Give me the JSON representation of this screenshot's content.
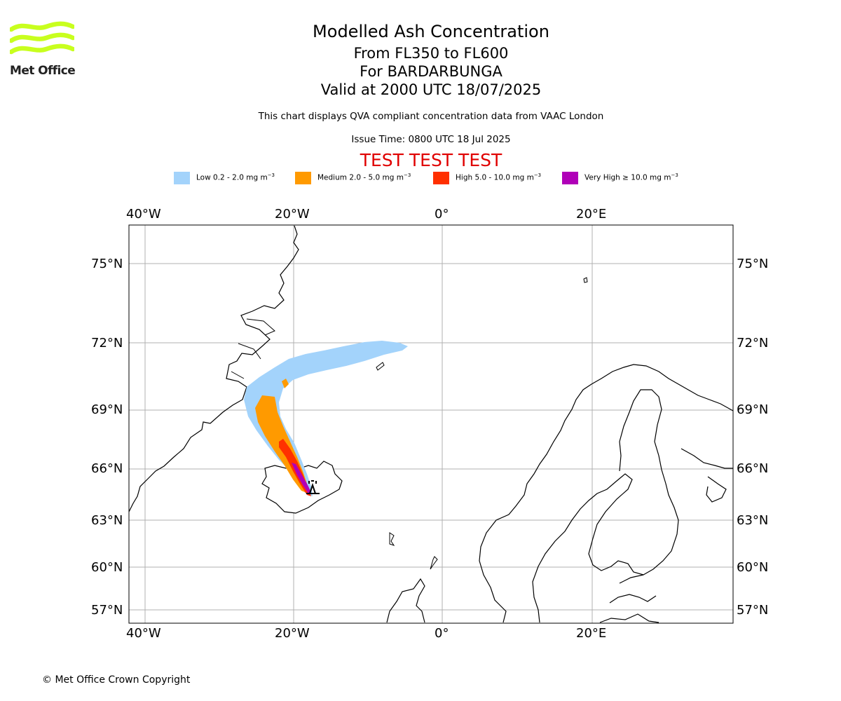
{
  "brand": {
    "name": "Met Office",
    "logo_color": "#c8ff1e"
  },
  "header": {
    "title": "Modelled Ash Concentration",
    "levels": "From FL350 to FL600",
    "volcano": "For BARDARBUNGA",
    "valid": "Valid at 2000 UTC 18/07/2025",
    "note": "This chart displays QVA compliant concentration data from VAAC London",
    "issue": "Issue Time: 0800 UTC 18 Jul 2025",
    "test_banner": "TEST TEST TEST"
  },
  "legend": [
    {
      "label": "Low 0.2 - 2.0 mg m",
      "unit_exp": "−3",
      "color": "#a3d3fb"
    },
    {
      "label": "Medium 2.0 - 5.0 mg m",
      "unit_exp": "−3",
      "color": "#ff9a00"
    },
    {
      "label": "High 5.0 - 10.0 mg m",
      "unit_exp": "−3",
      "color": "#ff3000"
    },
    {
      "label": "Very High ≥ 10.0 mg m",
      "unit_exp": "−3",
      "color": "#b000b8"
    }
  ],
  "map": {
    "lon_ticks": [
      "40°W",
      "20°W",
      "0°",
      "20°E"
    ],
    "lat_ticks": [
      "75°N",
      "72°N",
      "69°N",
      "66°N",
      "63°N",
      "60°N",
      "57°N"
    ],
    "gridline_color": "#b0b0b0"
  },
  "footer": {
    "copyright": "© Met Office Crown Copyright"
  }
}
